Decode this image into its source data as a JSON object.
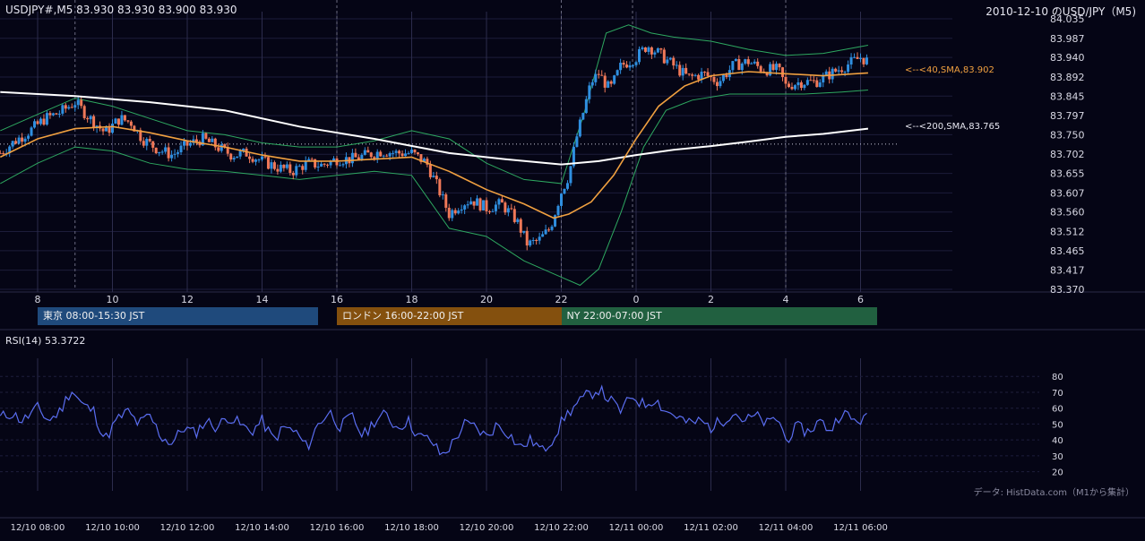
{
  "header": {
    "symbol_line": "USDJPY#,M5 83.930 83.930 83.900 83.930",
    "title": "2010-12-10 のUSD/JPY（M5)"
  },
  "colors": {
    "background": "#050515",
    "grid": "#1c1c3a",
    "up": "#2f8fe0",
    "down": "#f07858",
    "sma40": "#f0a040",
    "sma200": "#ffffff",
    "bollinger": "#2ea860",
    "rsi": "#5a6df0",
    "session_tokyo": "#1f4a7c",
    "session_london": "#84500e",
    "session_ny": "#216040"
  },
  "sessions": [
    {
      "label": "東京 08:00-15:30 JST",
      "color": "#1f4a7c"
    },
    {
      "label": "ロンドン 16:00-22:00 JST",
      "color": "#84500e"
    },
    {
      "label": "NY 22:00-07:00 JST",
      "color": "#216040"
    }
  ],
  "annotations": {
    "sma40": "<--<40,SMA,83.902",
    "sma200": "<--<200,SMA,83.765"
  },
  "rsi_label": "RSI(14) 53.3722",
  "source_note": "データ: HistData.com（M1から集計）",
  "chart_data": [
    {
      "type": "candlestick",
      "title": "2010-12-10 のUSD/JPY（M5)",
      "ylim": [
        83.37,
        84.035
      ],
      "y_ticks": [
        "84.035",
        "83.987",
        "83.940",
        "83.892",
        "83.845",
        "83.797",
        "83.750",
        "83.702",
        "83.655",
        "83.607",
        "83.560",
        "83.512",
        "83.465",
        "83.417",
        "83.370"
      ],
      "x_ticks": [
        "8",
        "10",
        "12",
        "14",
        "16",
        "18",
        "20",
        "22",
        "0",
        "2",
        "4",
        "6"
      ],
      "hour_start": 7.0,
      "hour_end": 30.2,
      "reference_level": 83.727,
      "close_path": [
        [
          7.0,
          83.705
        ],
        [
          7.4,
          83.735
        ],
        [
          7.8,
          83.76
        ],
        [
          8.2,
          83.79
        ],
        [
          8.6,
          83.805
        ],
        [
          9.0,
          83.83
        ],
        [
          9.4,
          83.79
        ],
        [
          9.8,
          83.755
        ],
        [
          10.2,
          83.79
        ],
        [
          10.5,
          83.78
        ],
        [
          10.8,
          83.74
        ],
        [
          11.2,
          83.715
        ],
        [
          11.6,
          83.7
        ],
        [
          12.0,
          83.725
        ],
        [
          12.4,
          83.74
        ],
        [
          12.8,
          83.72
        ],
        [
          13.2,
          83.7
        ],
        [
          13.6,
          83.705
        ],
        [
          14.0,
          83.685
        ],
        [
          14.4,
          83.67
        ],
        [
          14.8,
          83.66
        ],
        [
          15.2,
          83.68
        ],
        [
          15.6,
          83.675
        ],
        [
          16.0,
          83.69
        ],
        [
          16.4,
          83.69
        ],
        [
          16.8,
          83.7
        ],
        [
          17.2,
          83.71
        ],
        [
          17.6,
          83.705
        ],
        [
          18.0,
          83.705
        ],
        [
          18.4,
          83.68
        ],
        [
          18.7,
          83.62
        ],
        [
          19.0,
          83.555
        ],
        [
          19.3,
          83.58
        ],
        [
          19.6,
          83.59
        ],
        [
          20.0,
          83.57
        ],
        [
          20.4,
          83.58
        ],
        [
          20.8,
          83.54
        ],
        [
          21.1,
          83.48
        ],
        [
          21.4,
          83.49
        ],
        [
          21.7,
          83.52
        ],
        [
          22.0,
          83.61
        ],
        [
          22.2,
          83.65
        ],
        [
          22.4,
          83.74
        ],
        [
          22.6,
          83.81
        ],
        [
          22.8,
          83.88
        ],
        [
          23.0,
          83.9
        ],
        [
          23.3,
          83.86
        ],
        [
          23.6,
          83.92
        ],
        [
          24.0,
          83.94
        ],
        [
          24.3,
          83.97
        ],
        [
          24.6,
          83.95
        ],
        [
          25.0,
          83.92
        ],
        [
          25.4,
          83.89
        ],
        [
          25.8,
          83.9
        ],
        [
          26.2,
          83.88
        ],
        [
          26.6,
          83.92
        ],
        [
          27.0,
          83.93
        ],
        [
          27.4,
          83.91
        ],
        [
          27.8,
          83.91
        ],
        [
          28.0,
          83.87
        ],
        [
          28.4,
          83.88
        ],
        [
          28.8,
          83.88
        ],
        [
          29.2,
          83.9
        ],
        [
          29.6,
          83.92
        ],
        [
          30.0,
          83.94
        ],
        [
          30.2,
          83.93
        ]
      ],
      "series": [
        {
          "name": "SMA40",
          "last": 83.902,
          "points": [
            [
              7.0,
              83.695
            ],
            [
              8.0,
              83.74
            ],
            [
              9.0,
              83.765
            ],
            [
              10.0,
              83.77
            ],
            [
              11.0,
              83.755
            ],
            [
              12.0,
              83.735
            ],
            [
              13.0,
              83.72
            ],
            [
              14.0,
              83.7
            ],
            [
              15.0,
              83.685
            ],
            [
              16.0,
              83.685
            ],
            [
              17.0,
              83.69
            ],
            [
              18.0,
              83.695
            ],
            [
              19.0,
              83.66
            ],
            [
              20.0,
              83.615
            ],
            [
              21.0,
              83.58
            ],
            [
              21.8,
              83.545
            ],
            [
              22.2,
              83.555
            ],
            [
              22.8,
              83.585
            ],
            [
              23.4,
              83.65
            ],
            [
              24.0,
              83.74
            ],
            [
              24.6,
              83.82
            ],
            [
              25.3,
              83.87
            ],
            [
              26.0,
              83.895
            ],
            [
              27.0,
              83.905
            ],
            [
              28.0,
              83.9
            ],
            [
              29.0,
              83.895
            ],
            [
              30.2,
              83.902
            ]
          ]
        },
        {
          "name": "SMA200",
          "last": 83.765,
          "points": [
            [
              7.0,
              83.855
            ],
            [
              9.0,
              83.845
            ],
            [
              11.0,
              83.83
            ],
            [
              13.0,
              83.81
            ],
            [
              15.0,
              83.77
            ],
            [
              17.0,
              83.74
            ],
            [
              19.0,
              83.705
            ],
            [
              20.5,
              83.69
            ],
            [
              22.0,
              83.677
            ],
            [
              23.0,
              83.685
            ],
            [
              24.0,
              83.7
            ],
            [
              25.0,
              83.713
            ],
            [
              26.0,
              83.722
            ],
            [
              27.0,
              83.733
            ],
            [
              28.0,
              83.745
            ],
            [
              29.0,
              83.752
            ],
            [
              30.2,
              83.765
            ]
          ]
        },
        {
          "name": "BB_upper",
          "points": [
            [
              7.0,
              83.76
            ],
            [
              8.0,
              83.8
            ],
            [
              9.0,
              83.84
            ],
            [
              10.0,
              83.82
            ],
            [
              11.0,
              83.79
            ],
            [
              12.0,
              83.76
            ],
            [
              13.0,
              83.75
            ],
            [
              14.0,
              83.73
            ],
            [
              15.0,
              83.72
            ],
            [
              16.0,
              83.72
            ],
            [
              17.0,
              83.735
            ],
            [
              18.0,
              83.76
            ],
            [
              19.0,
              83.74
            ],
            [
              20.0,
              83.68
            ],
            [
              21.0,
              83.64
            ],
            [
              22.0,
              83.63
            ],
            [
              22.6,
              83.8
            ],
            [
              23.2,
              84.0
            ],
            [
              23.8,
              84.02
            ],
            [
              24.4,
              84.0
            ],
            [
              25.0,
              83.99
            ],
            [
              26.0,
              83.98
            ],
            [
              27.0,
              83.96
            ],
            [
              28.0,
              83.945
            ],
            [
              29.0,
              83.95
            ],
            [
              30.2,
              83.97
            ]
          ]
        },
        {
          "name": "BB_lower",
          "points": [
            [
              7.0,
              83.63
            ],
            [
              8.0,
              83.68
            ],
            [
              9.0,
              83.72
            ],
            [
              10.0,
              83.71
            ],
            [
              11.0,
              83.68
            ],
            [
              12.0,
              83.665
            ],
            [
              13.0,
              83.66
            ],
            [
              14.0,
              83.65
            ],
            [
              15.0,
              83.64
            ],
            [
              16.0,
              83.65
            ],
            [
              17.0,
              83.66
            ],
            [
              18.0,
              83.65
            ],
            [
              19.0,
              83.52
            ],
            [
              20.0,
              83.5
            ],
            [
              21.0,
              83.44
            ],
            [
              22.0,
              83.4
            ],
            [
              22.5,
              83.38
            ],
            [
              23.0,
              83.42
            ],
            [
              23.6,
              83.56
            ],
            [
              24.2,
              83.72
            ],
            [
              24.8,
              83.81
            ],
            [
              25.5,
              83.835
            ],
            [
              26.5,
              83.85
            ],
            [
              27.5,
              83.85
            ],
            [
              28.5,
              83.85
            ],
            [
              29.5,
              83.855
            ],
            [
              30.2,
              83.86
            ]
          ]
        }
      ]
    },
    {
      "type": "line",
      "title": "RSI(14) 53.3722",
      "ylim": [
        17,
        88
      ],
      "y_ticks": [
        80,
        70,
        60,
        50,
        40,
        30,
        20
      ],
      "x_ticks": [
        "12/10 08:00",
        "12/10 10:00",
        "12/10 12:00",
        "12/10 14:00",
        "12/10 16:00",
        "12/10 18:00",
        "12/10 20:00",
        "12/10 22:00",
        "12/11 00:00",
        "12/11 02:00",
        "12/11 04:00",
        "12/11 06:00"
      ],
      "series": [
        {
          "name": "RSI(14)",
          "last": 53.3722,
          "points": [
            [
              7.0,
              54
            ],
            [
              7.3,
              57
            ],
            [
              7.6,
              52
            ],
            [
              8.0,
              60
            ],
            [
              8.3,
              52
            ],
            [
              8.6,
              58
            ],
            [
              8.9,
              72
            ],
            [
              9.2,
              62
            ],
            [
              9.5,
              58
            ],
            [
              9.8,
              40
            ],
            [
              10.1,
              52
            ],
            [
              10.4,
              58
            ],
            [
              10.7,
              50
            ],
            [
              11.0,
              55
            ],
            [
              11.3,
              42
            ],
            [
              11.6,
              38
            ],
            [
              11.9,
              48
            ],
            [
              12.2,
              44
            ],
            [
              12.5,
              52
            ],
            [
              12.8,
              48
            ],
            [
              13.1,
              55
            ],
            [
              13.4,
              50
            ],
            [
              13.7,
              45
            ],
            [
              14.0,
              52
            ],
            [
              14.3,
              40
            ],
            [
              14.6,
              48
            ],
            [
              14.9,
              45
            ],
            [
              15.2,
              35
            ],
            [
              15.5,
              50
            ],
            [
              15.8,
              58
            ],
            [
              16.1,
              48
            ],
            [
              16.4,
              55
            ],
            [
              16.7,
              42
            ],
            [
              17.0,
              52
            ],
            [
              17.3,
              56
            ],
            [
              17.6,
              48
            ],
            [
              17.9,
              52
            ],
            [
              18.2,
              42
            ],
            [
              18.5,
              40
            ],
            [
              18.8,
              30
            ],
            [
              19.1,
              38
            ],
            [
              19.4,
              50
            ],
            [
              19.7,
              48
            ],
            [
              20.0,
              42
            ],
            [
              20.3,
              50
            ],
            [
              20.6,
              44
            ],
            [
              20.9,
              35
            ],
            [
              21.2,
              40
            ],
            [
              21.5,
              33
            ],
            [
              21.8,
              42
            ],
            [
              22.1,
              55
            ],
            [
              22.4,
              62
            ],
            [
              22.7,
              68
            ],
            [
              23.0,
              72
            ],
            [
              23.3,
              65
            ],
            [
              23.6,
              58
            ],
            [
              23.9,
              68
            ],
            [
              24.2,
              62
            ],
            [
              24.5,
              66
            ],
            [
              24.8,
              58
            ],
            [
              25.1,
              55
            ],
            [
              25.4,
              50
            ],
            [
              25.7,
              52
            ],
            [
              26.0,
              48
            ],
            [
              26.3,
              52
            ],
            [
              26.6,
              58
            ],
            [
              26.9,
              52
            ],
            [
              27.2,
              55
            ],
            [
              27.5,
              50
            ],
            [
              27.8,
              54
            ],
            [
              28.0,
              40
            ],
            [
              28.3,
              48
            ],
            [
              28.6,
              45
            ],
            [
              28.9,
              52
            ],
            [
              29.2,
              46
            ],
            [
              29.5,
              58
            ],
            [
              29.8,
              52
            ],
            [
              30.2,
              53.4
            ]
          ]
        }
      ]
    }
  ]
}
